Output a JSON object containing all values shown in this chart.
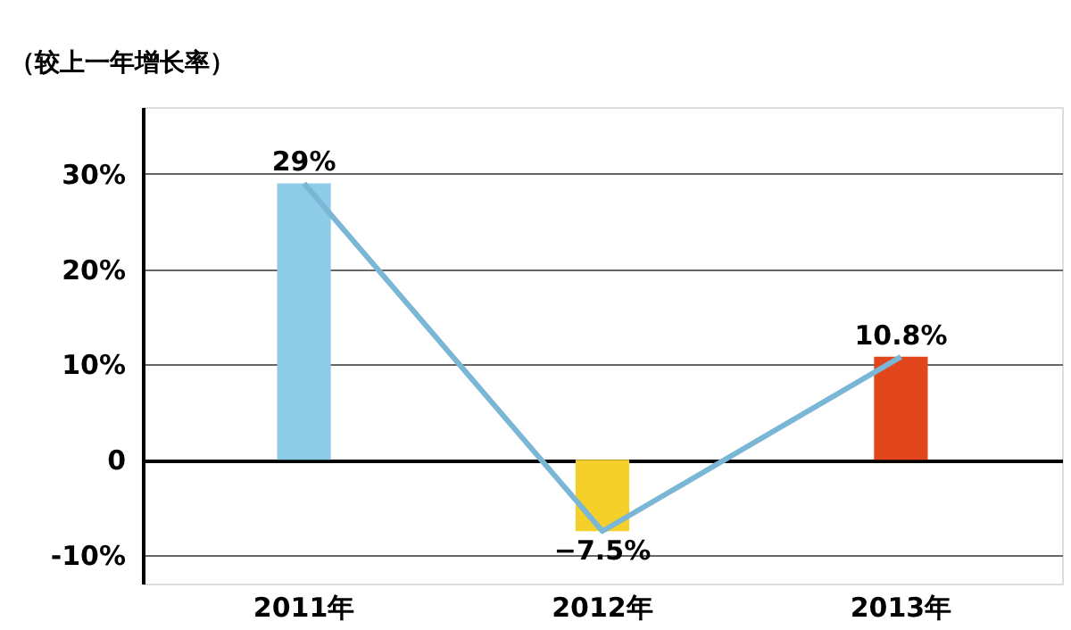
{
  "chart_data": {
    "type": "bar",
    "ylabel": "（较上一年增长率）",
    "categories": [
      "2011年",
      "2012年",
      "2013年"
    ],
    "series": [
      {
        "colors": [
          "#8ecbe6",
          "#f5cf2a",
          "#e2461c"
        ],
        "values": [
          29,
          -7.5,
          10.8
        ],
        "value_labels": [
          "29%",
          "−7.5%",
          "10.8%"
        ]
      },
      {
        "type": "line",
        "color": "#7ab6d6",
        "values": [
          29,
          -7.5,
          10.8
        ]
      }
    ],
    "ylim": [
      -13,
      37
    ],
    "yticks": [
      {
        "value": -10,
        "label": "-10%"
      },
      0,
      {
        "value": 10,
        "label": "10%"
      },
      {
        "value": 20,
        "label": "20%"
      },
      {
        "value": 30,
        "label": "30%"
      }
    ],
    "grid": "y",
    "legend": false,
    "marker": "none"
  }
}
